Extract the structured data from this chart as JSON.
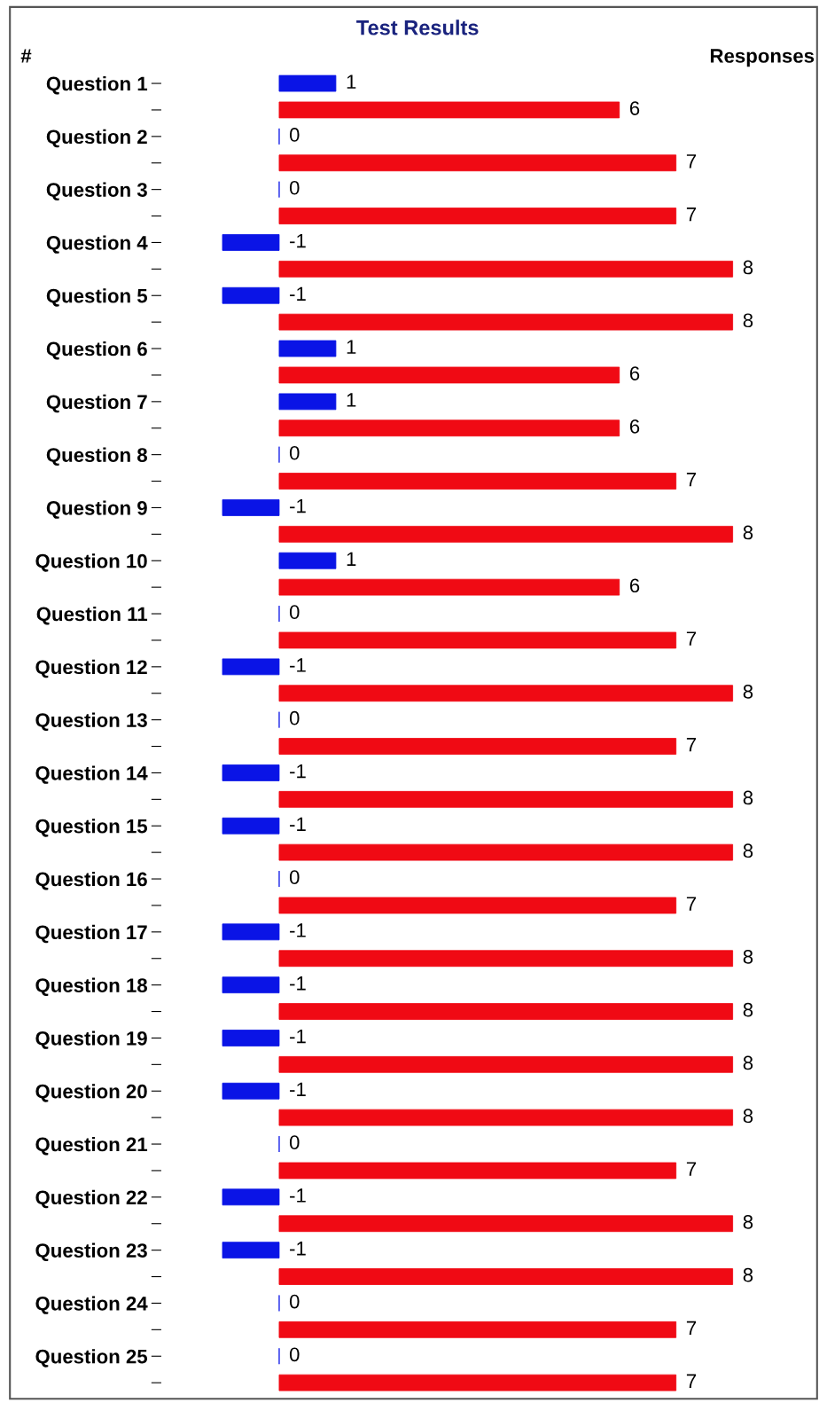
{
  "chart_data": {
    "type": "bar",
    "orientation": "horizontal",
    "title": "Test Results",
    "ylabel": "#",
    "y2label": "Responses",
    "categories": [
      "Question 1",
      "Question 2",
      "Question 3",
      "Question 4",
      "Question 5",
      "Question 6",
      "Question 7",
      "Question 8",
      "Question 9",
      "Question 10",
      "Question 11",
      "Question 12",
      "Question 13",
      "Question 14",
      "Question 15",
      "Question 16",
      "Question 17",
      "Question 18",
      "Question 19",
      "Question 20",
      "Question 21",
      "Question 22",
      "Question 23",
      "Question 24",
      "Question 25"
    ],
    "series": [
      {
        "color": "#0a14e6",
        "values": [
          1,
          0,
          0,
          -1,
          -1,
          1,
          1,
          0,
          -1,
          1,
          0,
          -1,
          0,
          -1,
          -1,
          0,
          -1,
          -1,
          -1,
          -1,
          0,
          -1,
          -1,
          0,
          0
        ]
      },
      {
        "color": "#f00a14",
        "values": [
          6,
          7,
          7,
          8,
          8,
          6,
          6,
          7,
          8,
          6,
          7,
          8,
          7,
          8,
          8,
          7,
          8,
          8,
          8,
          8,
          7,
          8,
          8,
          7,
          7
        ]
      }
    ],
    "tick_labels": "y",
    "data_labels": true,
    "grid": false,
    "legend": false
  }
}
